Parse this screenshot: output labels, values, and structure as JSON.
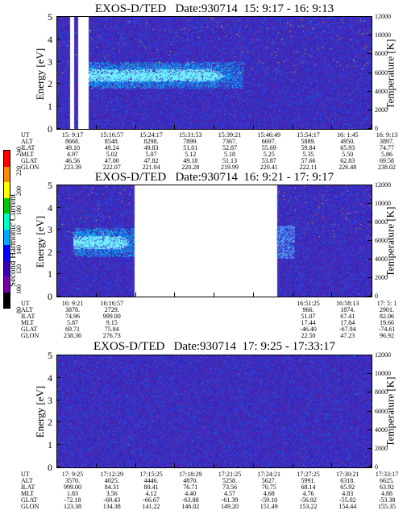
{
  "panels": [
    {
      "title": "EXOS-D/TED   Date:930714  15: 9:17 - 16: 9:13",
      "yleft_label": "Energy [eV]",
      "yright_label": "Temperature [K]",
      "left_ticks": [
        "5",
        "4",
        "3",
        "2",
        "1",
        "0"
      ],
      "right_ticks": [
        "12000",
        "10000",
        "8000",
        "6000",
        "4000",
        "2000",
        "0"
      ],
      "orbit": {
        "labels": [
          "UT",
          "ALT",
          "ILAT",
          "MLT",
          "GLAT",
          "GLON"
        ],
        "columns": [
          [
            "15: 9:17",
            "8668.",
            "49.10",
            "4.97",
            "46.56",
            "223.39"
          ],
          [
            "15:16:57",
            "8548.",
            "49.24",
            "5.02",
            "47.00",
            "222.07"
          ],
          [
            "15:24:17",
            "8298.",
            "49.83",
            "5.07",
            "47.82",
            "221.04"
          ],
          [
            "15:31:53",
            "7899.",
            "51.01",
            "5.12",
            "49.18",
            "220.28"
          ],
          [
            "15:39:21",
            "7367.",
            "52.87",
            "5.18",
            "51.13",
            "219.99"
          ],
          [
            "15:46:49",
            "6697.",
            "55.69",
            "5.25",
            "53.87",
            "220.41"
          ],
          [
            "15:54:17",
            "5889.",
            "59.84",
            "5.35",
            "57.66",
            "222.11"
          ],
          [
            "16: 1:45",
            "4950.",
            "65.93",
            "5.50",
            "62.83",
            "226.48"
          ],
          [
            "16: 9:13",
            "3897.",
            "74.77",
            "5.86",
            "69.58",
            "238.02"
          ]
        ]
      }
    },
    {
      "title": "EXOS-D/TED   Date:930714  16: 9:21 - 17: 9:17",
      "yleft_label": "Energy [eV]",
      "yright_label": "Temperature [K]",
      "left_ticks": [
        "5",
        "4",
        "3",
        "2",
        "1",
        "0"
      ],
      "right_ticks": [
        "12000",
        "10000",
        "8000",
        "6000",
        "4000",
        "2000",
        "0"
      ],
      "orbit": {
        "labels": [
          "UT",
          "ALT",
          "ILAT",
          "MLT",
          "GLAT",
          "GLON"
        ],
        "columns": [
          [
            "16: 9:21",
            "3878.",
            "74.96",
            "5.87",
            "69.71",
            "238.36"
          ],
          [
            "16:16:57",
            "2729.",
            "999.00",
            "9.15",
            "75.84",
            "276.73"
          ],
          [
            "",
            "",
            "",
            "",
            "",
            ""
          ],
          [
            "",
            "",
            "",
            "",
            "",
            ""
          ],
          [
            "",
            "",
            "",
            "",
            "",
            ""
          ],
          [
            "",
            "",
            "",
            "",
            "",
            ""
          ],
          [
            "16:51:25",
            "966.",
            "51.07",
            "17.44",
            "-46.40",
            "22.50"
          ],
          [
            "16:58:13",
            "1874.",
            "67.41",
            "17.84",
            "-67.94",
            "47.23"
          ],
          [
            "17: 5: 1",
            "2901.",
            "82.06",
            "19.66",
            "-74.61",
            "96.92"
          ]
        ]
      }
    },
    {
      "title": "EXOS-D/TED   Date:930714  17: 9:25 - 17:33:17",
      "yleft_label": "Energy [eV]",
      "yright_label": "Temperature [K]",
      "left_ticks": [
        "5",
        "4",
        "3",
        "2",
        "1",
        "0"
      ],
      "right_ticks": [
        "12000",
        "10000",
        "8000",
        "6000",
        "4000",
        "2000",
        "0"
      ],
      "orbit": {
        "labels": [
          "UT",
          "ALT",
          "ILAT",
          "MLT",
          "GLAT",
          "GLON"
        ],
        "columns": [
          [
            "17: 9:25",
            "3570.",
            "999.00",
            "1.83",
            "-72.18",
            "123.38"
          ],
          [
            "17:12:29",
            "4025.",
            "84.31",
            "3.56",
            "-69.43",
            "134.38"
          ],
          [
            "17:15:25",
            "4446.",
            "80.41",
            "4.12",
            "-66.67",
            "141.22"
          ],
          [
            "17:18:29",
            "4870.",
            "76.71",
            "4.40",
            "-63.88",
            "146.02"
          ],
          [
            "17:21:25",
            "5258.",
            "73.56",
            "4.57",
            "-61.39",
            "149.20"
          ],
          [
            "17:24:21",
            "5627.",
            "70.75",
            "4.68",
            "-59.10",
            "151.49"
          ],
          [
            "17:27:25",
            "5991.",
            "68.14",
            "4.76",
            "-56.92",
            "153.22"
          ],
          [
            "17:30:21",
            "6318.",
            "65.92",
            "4.83",
            "-55.02",
            "154.44"
          ],
          [
            "17:33:17",
            "6625.",
            "63.92",
            "4.88",
            "-53.38",
            "155.35"
          ]
        ]
      }
    }
  ],
  "colorbar": {
    "label": "Second Harmonic Current",
    "ticks": [
      "240",
      "220",
      "200",
      "180",
      "160",
      "140",
      "120",
      "100",
      "80"
    ],
    "colors": [
      "#ff0000",
      "#ff8c00",
      "#ffff00",
      "#00c800",
      "#00ffc8",
      "#00aaff",
      "#0000ff",
      "#3c00b4",
      "#7800aa",
      "#000000"
    ]
  },
  "chart_data": [
    {
      "type": "heatmap",
      "title": "EXOS-D/TED   Date:930714  15: 9:17 - 16: 9:13",
      "xlabel": "UT",
      "ylabel": "Energy [eV]",
      "ylabel_right": "Temperature [K]",
      "ylim": [
        0,
        5
      ],
      "ylim_right": [
        0,
        12000
      ],
      "x": [
        "15: 9:17",
        "15:16:57",
        "15:24:17",
        "15:31:53",
        "15:39:21",
        "15:46:49",
        "15:54:17",
        "16: 1:45",
        "16: 9:13"
      ],
      "features": {
        "bright_band_energy_eV": [
          1.8,
          3.0
        ],
        "band_extent_ut": [
          "15:16:57",
          "15:46:49"
        ],
        "data_gaps_ut": [
          "15:12:00",
          "15:16:00"
        ]
      }
    },
    {
      "type": "heatmap",
      "title": "EXOS-D/TED   Date:930714  16: 9:21 - 17: 9:17",
      "xlabel": "UT",
      "ylabel": "Energy [eV]",
      "ylabel_right": "Temperature [K]",
      "ylim": [
        0,
        5
      ],
      "ylim_right": [
        0,
        12000
      ],
      "x": [
        "16: 9:21",
        "16:16:57",
        "16:51:25",
        "16:58:13",
        "17: 5: 1"
      ],
      "features": {
        "no_data_ut": [
          "16:19:00",
          "16:51:00"
        ],
        "bright_band_energy_eV": [
          2.0,
          3.0
        ]
      }
    },
    {
      "type": "heatmap",
      "title": "EXOS-D/TED   Date:930714  17: 9:25 - 17:33:17",
      "xlabel": "UT",
      "ylabel": "Energy [eV]",
      "ylabel_right": "Temperature [K]",
      "ylim": [
        0,
        5
      ],
      "ylim_right": [
        0,
        12000
      ],
      "x": [
        "17: 9:25",
        "17:12:29",
        "17:15:25",
        "17:18:29",
        "17:21:25",
        "17:24:21",
        "17:27:25",
        "17:30:21",
        "17:33:17"
      ],
      "features": {
        "background_only": true
      }
    }
  ]
}
